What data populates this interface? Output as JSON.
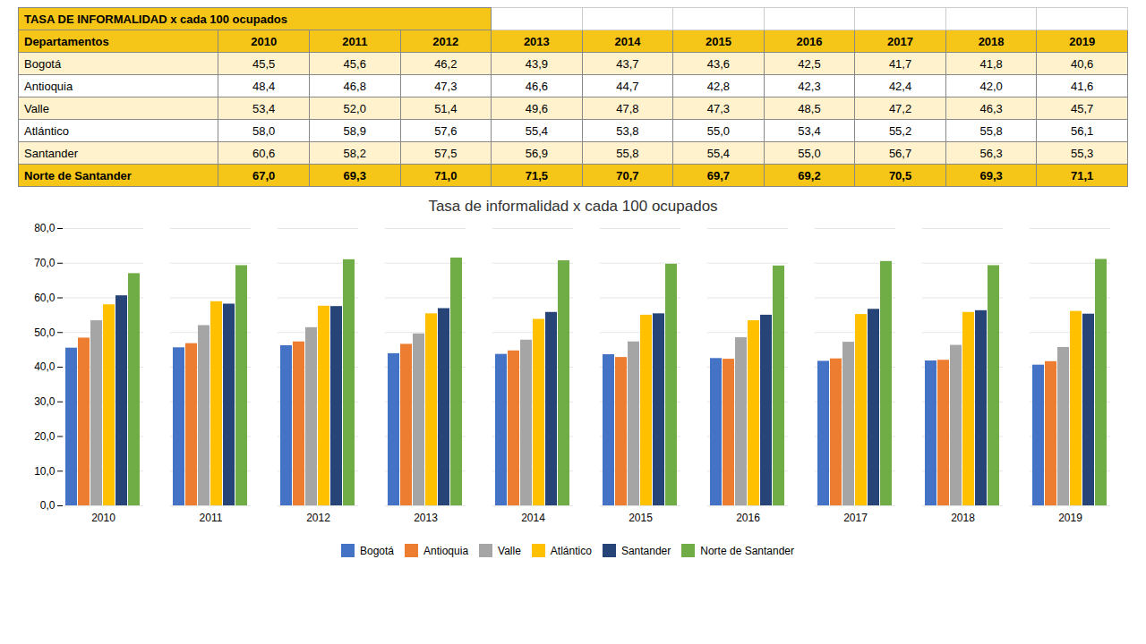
{
  "chart_data": {
    "type": "bar",
    "title": "Tasa de informalidad x cada 100 ocupados",
    "categories": [
      "2010",
      "2011",
      "2012",
      "2013",
      "2014",
      "2015",
      "2016",
      "2017",
      "2018",
      "2019"
    ],
    "series": [
      {
        "name": "Bogotá",
        "color": "#4472C4",
        "values": [
          45.5,
          45.6,
          46.2,
          43.9,
          43.7,
          43.6,
          42.5,
          41.7,
          41.8,
          40.6
        ]
      },
      {
        "name": "Antioquia",
        "color": "#ED7D31",
        "values": [
          48.4,
          46.8,
          47.3,
          46.6,
          44.7,
          42.8,
          42.3,
          42.4,
          42.0,
          41.6
        ]
      },
      {
        "name": "Valle",
        "color": "#A5A5A5",
        "values": [
          53.4,
          52.0,
          51.4,
          49.6,
          47.8,
          47.3,
          48.5,
          47.2,
          46.3,
          45.7
        ]
      },
      {
        "name": "Atlántico",
        "color": "#FFC000",
        "values": [
          58.0,
          58.9,
          57.6,
          55.4,
          53.8,
          55.0,
          53.4,
          55.2,
          55.8,
          56.1
        ]
      },
      {
        "name": "Santander",
        "color": "#264478",
        "values": [
          60.6,
          58.2,
          57.5,
          56.9,
          55.8,
          55.4,
          55.0,
          56.7,
          56.3,
          55.3
        ]
      },
      {
        "name": "Norte de Santander",
        "color": "#70AD47",
        "values": [
          67.0,
          69.3,
          71.0,
          71.5,
          70.7,
          69.7,
          69.2,
          70.5,
          69.3,
          71.1
        ]
      }
    ],
    "ylim": [
      0,
      80
    ],
    "yticks": [
      {
        "value": 0,
        "label": "0,0"
      },
      {
        "value": 10,
        "label": "10,0"
      },
      {
        "value": 20,
        "label": "20,0"
      },
      {
        "value": 30,
        "label": "30,0"
      },
      {
        "value": 40,
        "label": "40,0"
      },
      {
        "value": 50,
        "label": "50,0"
      },
      {
        "value": 60,
        "label": "60,0"
      },
      {
        "value": 70,
        "label": "70,0"
      },
      {
        "value": 80,
        "label": "80,0"
      }
    ],
    "grid": true,
    "legend": "bottom"
  },
  "table": {
    "title": "TASA DE INFORMALIDAD x cada 100 ocupados",
    "headers": [
      "Departamentos",
      "2010",
      "2011",
      "2012",
      "2013",
      "2014",
      "2015",
      "2016",
      "2017",
      "2018",
      "2019"
    ],
    "rows": [
      [
        "Bogotá",
        "45,5",
        "45,6",
        "46,2",
        "43,9",
        "43,7",
        "43,6",
        "42,5",
        "41,7",
        "41,8",
        "40,6"
      ],
      [
        "Antioquia",
        "48,4",
        "46,8",
        "47,3",
        "46,6",
        "44,7",
        "42,8",
        "42,3",
        "42,4",
        "42,0",
        "41,6"
      ],
      [
        "Valle",
        "53,4",
        "52,0",
        "51,4",
        "49,6",
        "47,8",
        "47,3",
        "48,5",
        "47,2",
        "46,3",
        "45,7"
      ],
      [
        "Atlántico",
        "58,0",
        "58,9",
        "57,6",
        "55,4",
        "53,8",
        "55,0",
        "53,4",
        "55,2",
        "55,8",
        "56,1"
      ],
      [
        "Santander",
        "60,6",
        "58,2",
        "57,5",
        "56,9",
        "55,8",
        "55,4",
        "55,0",
        "56,7",
        "56,3",
        "55,3"
      ],
      [
        "Norte de Santander",
        "67,0",
        "69,3",
        "71,0",
        "71,5",
        "70,7",
        "69,7",
        "69,2",
        "70,5",
        "69,3",
        "71,1"
      ]
    ]
  }
}
